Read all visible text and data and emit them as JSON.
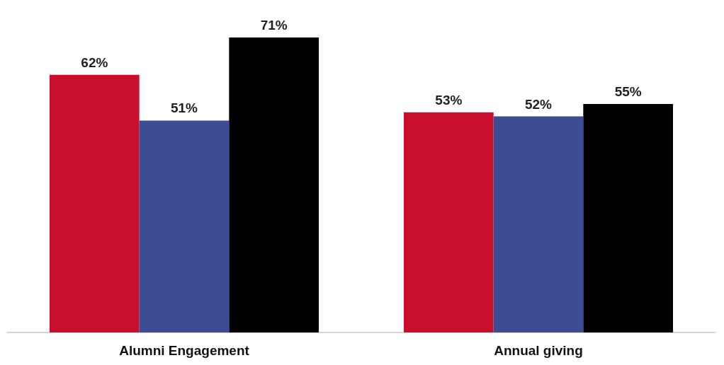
{
  "chart_data": {
    "type": "bar",
    "categories": [
      "Alumni Engagement",
      "Annual giving"
    ],
    "series": [
      {
        "color": "#c8102e",
        "values": [
          62,
          53
        ],
        "value_labels": [
          "62%",
          "53%"
        ]
      },
      {
        "color": "#3d4d94",
        "values": [
          51,
          52
        ],
        "value_labels": [
          "51%",
          "52%"
        ]
      },
      {
        "color": "#000000",
        "values": [
          71,
          55
        ],
        "value_labels": [
          "71%",
          "55%"
        ]
      }
    ],
    "tick_labels": "x"
  }
}
